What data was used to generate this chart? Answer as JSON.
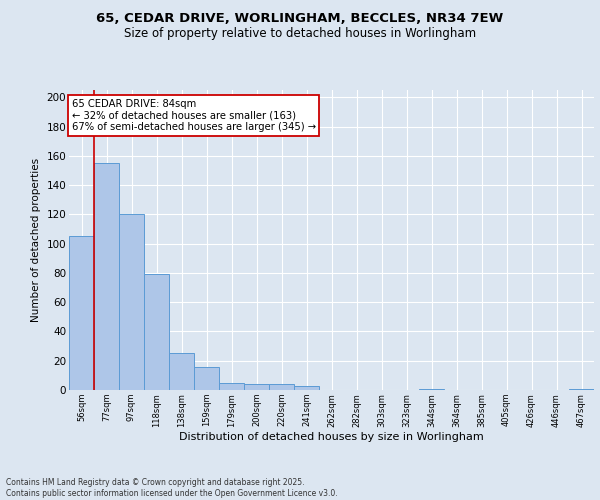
{
  "title_line1": "65, CEDAR DRIVE, WORLINGHAM, BECCLES, NR34 7EW",
  "title_line2": "Size of property relative to detached houses in Worlingham",
  "xlabel": "Distribution of detached houses by size in Worlingham",
  "ylabel": "Number of detached properties",
  "categories": [
    "56sqm",
    "77sqm",
    "97sqm",
    "118sqm",
    "138sqm",
    "159sqm",
    "179sqm",
    "200sqm",
    "220sqm",
    "241sqm",
    "262sqm",
    "282sqm",
    "303sqm",
    "323sqm",
    "344sqm",
    "364sqm",
    "385sqm",
    "405sqm",
    "426sqm",
    "446sqm",
    "467sqm"
  ],
  "values": [
    105,
    155,
    120,
    79,
    25,
    16,
    5,
    4,
    4,
    3,
    0,
    0,
    0,
    0,
    1,
    0,
    0,
    0,
    0,
    0,
    1
  ],
  "bar_color": "#aec6e8",
  "bar_edge_color": "#5b9bd5",
  "background_color": "#dce6f1",
  "plot_bg_color": "#dce6f1",
  "grid_color": "#ffffff",
  "vline_color": "#cc0000",
  "annotation_text": "65 CEDAR DRIVE: 84sqm\n← 32% of detached houses are smaller (163)\n67% of semi-detached houses are larger (345) →",
  "annotation_box_color": "#ffffff",
  "annotation_box_edge": "#cc0000",
  "footer_text": "Contains HM Land Registry data © Crown copyright and database right 2025.\nContains public sector information licensed under the Open Government Licence v3.0.",
  "ylim": [
    0,
    205
  ],
  "yticks": [
    0,
    20,
    40,
    60,
    80,
    100,
    120,
    140,
    160,
    180,
    200
  ]
}
